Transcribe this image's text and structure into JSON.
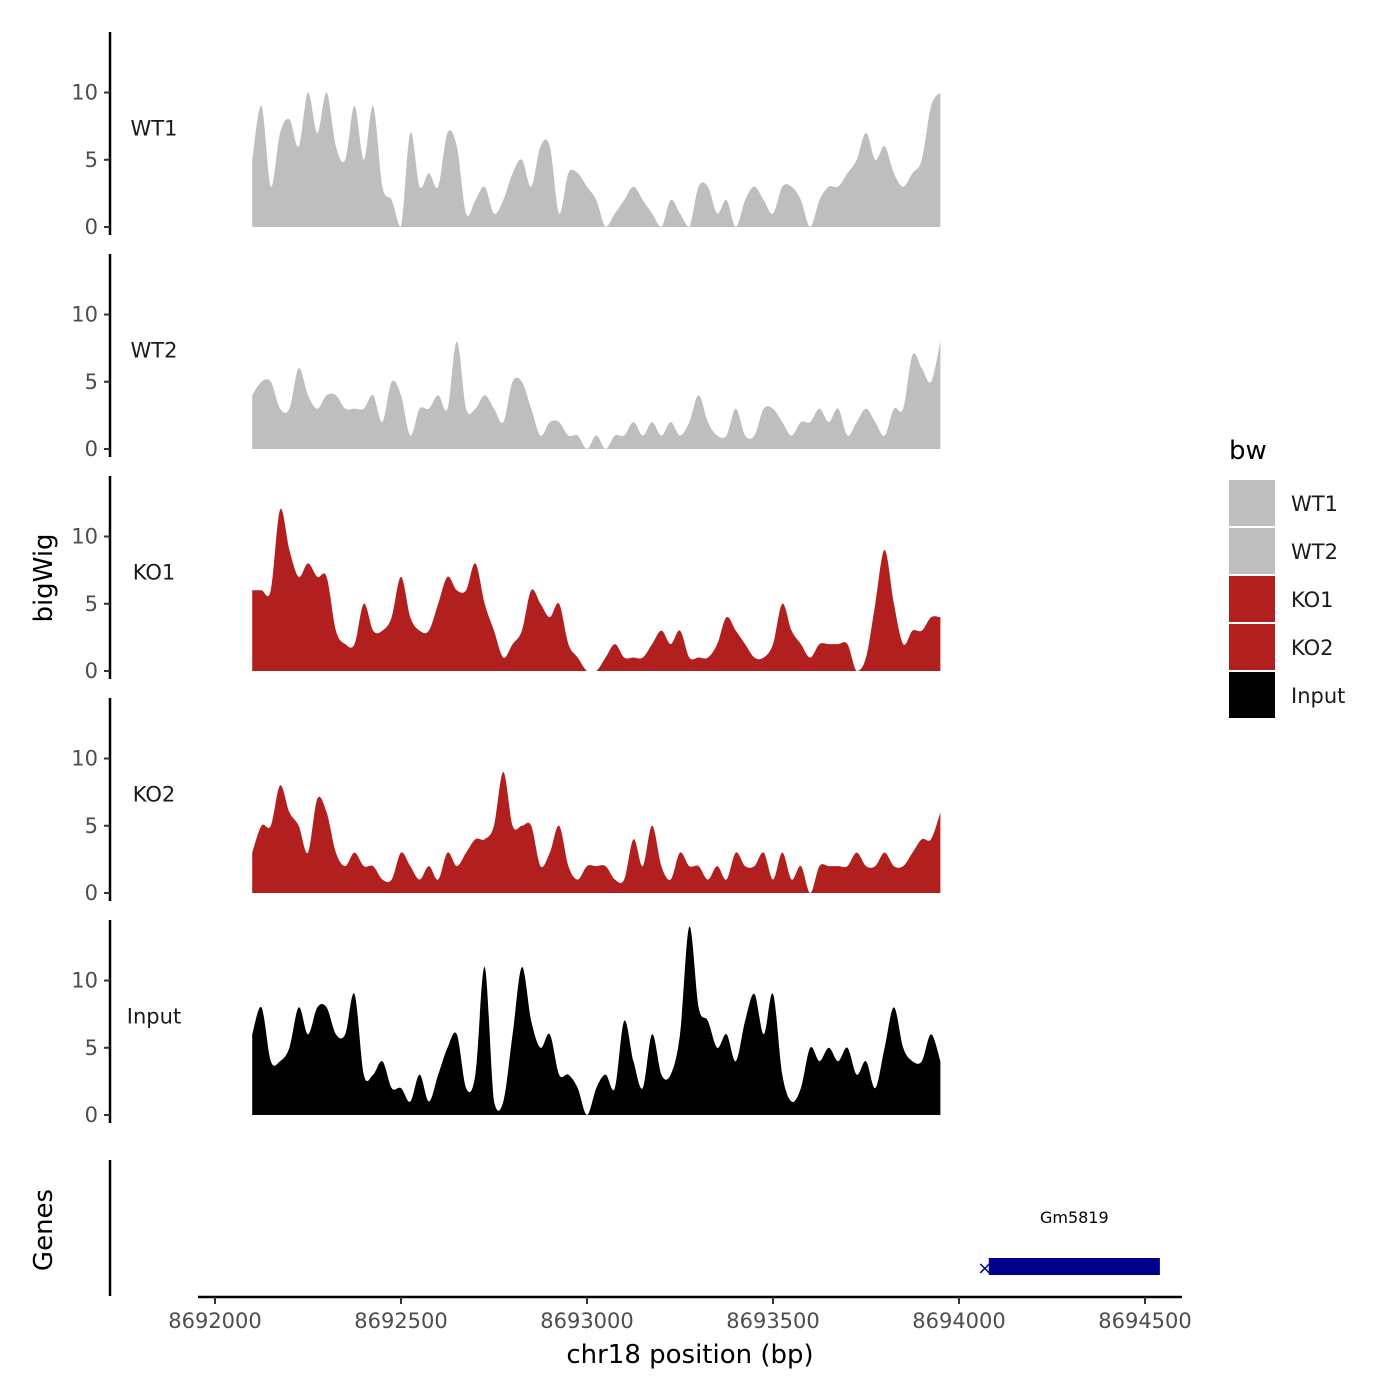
{
  "chart_data": {
    "type": "area",
    "ylabel": "bigWig",
    "genes_label": "Genes",
    "xlabel": "chr18 position (bp)",
    "xlim": [
      8691950,
      8694600
    ],
    "x_ticks": [
      8692000,
      8692500,
      8693000,
      8693500,
      8694000,
      8694500
    ],
    "x_tick_labels": [
      "8692000",
      "8692500",
      "8693000",
      "8693500",
      "8694000",
      "8694500"
    ],
    "ylim": [
      0,
      14.5
    ],
    "y_ticks": [
      0,
      5,
      10
    ],
    "y_tick_labels": [
      "0",
      "5",
      "10"
    ],
    "step": 25,
    "legend": {
      "title": "bw",
      "entries": [
        {
          "label": "WT1",
          "color": "#bebebe"
        },
        {
          "label": "WT2",
          "color": "#bebebe"
        },
        {
          "label": "KO1",
          "color": "#b21f1f"
        },
        {
          "label": "KO2",
          "color": "#b21f1f"
        },
        {
          "label": "Input",
          "color": "#000000"
        }
      ]
    },
    "tracks": [
      {
        "name": "WT1",
        "color": "#bebebe",
        "x_start": 8692100,
        "values": [
          5,
          9,
          3,
          7,
          8,
          6,
          10,
          7,
          10,
          6,
          5,
          9,
          5,
          9,
          3,
          2,
          0,
          7,
          3,
          4,
          3,
          7,
          6,
          1,
          2,
          3,
          1,
          2,
          4,
          5,
          3,
          6,
          6,
          1,
          4,
          4,
          3,
          2,
          0,
          1,
          2,
          3,
          2,
          1,
          0,
          2,
          1,
          0,
          3,
          3,
          1,
          2,
          0,
          2,
          3,
          2,
          1,
          3,
          3,
          2,
          0,
          2,
          3,
          3,
          4,
          5,
          7,
          5,
          6,
          4,
          3,
          4,
          5,
          9,
          10
        ]
      },
      {
        "name": "WT2",
        "color": "#bebebe",
        "x_start": 8692100,
        "values": [
          4,
          5,
          5,
          3,
          3,
          6,
          4,
          3,
          4,
          4,
          3,
          3,
          3,
          4,
          2,
          5,
          4,
          1,
          3,
          3,
          4,
          3,
          8,
          3,
          3,
          4,
          3,
          2,
          5,
          5,
          3,
          1,
          2,
          2,
          1,
          1,
          0,
          1,
          0,
          1,
          1,
          2,
          1,
          2,
          1,
          2,
          1,
          2,
          4,
          2,
          1,
          1,
          3,
          1,
          1,
          3,
          3,
          2,
          1,
          2,
          2,
          3,
          2,
          3,
          1,
          2,
          3,
          2,
          1,
          3,
          3,
          7,
          6,
          5,
          8
        ]
      },
      {
        "name": "KO1",
        "color": "#b21f1f",
        "x_start": 8692100,
        "values": [
          6,
          6,
          6,
          12,
          9,
          7,
          8,
          7,
          7,
          3,
          2,
          2,
          5,
          3,
          3,
          4,
          7,
          4,
          3,
          3,
          5,
          7,
          6,
          6,
          8,
          5,
          3,
          1,
          2,
          3,
          6,
          5,
          4,
          5,
          2,
          1,
          0,
          0,
          1,
          2,
          1,
          1,
          1,
          2,
          3,
          2,
          3,
          1,
          1,
          1,
          2,
          4,
          3,
          2,
          1,
          1,
          2,
          5,
          3,
          2,
          1,
          2,
          2,
          2,
          2,
          0,
          1,
          5,
          9,
          5,
          2,
          3,
          3,
          4,
          4
        ]
      },
      {
        "name": "KO2",
        "color": "#b21f1f",
        "x_start": 8692100,
        "values": [
          3,
          5,
          5,
          8,
          6,
          5,
          3,
          7,
          6,
          3,
          2,
          3,
          2,
          2,
          1,
          1,
          3,
          2,
          1,
          2,
          1,
          3,
          2,
          3,
          4,
          4,
          5,
          9,
          5,
          5,
          5,
          2,
          3,
          5,
          2,
          1,
          2,
          2,
          2,
          1,
          1,
          4,
          2,
          5,
          2,
          1,
          3,
          2,
          2,
          1,
          2,
          1,
          3,
          2,
          2,
          3,
          1,
          3,
          1,
          2,
          0,
          2,
          2,
          2,
          2,
          3,
          2,
          2,
          3,
          2,
          2,
          3,
          4,
          4,
          6
        ]
      },
      {
        "name": "Input",
        "color": "#000000",
        "x_start": 8692100,
        "values": [
          6,
          8,
          4,
          4,
          5,
          8,
          6,
          8,
          8,
          6,
          6,
          9,
          3,
          3,
          4,
          2,
          2,
          1,
          3,
          1,
          3,
          5,
          6,
          2,
          3,
          11,
          1,
          1,
          6,
          11,
          7,
          5,
          6,
          3,
          3,
          2,
          0,
          2,
          3,
          2,
          7,
          4,
          2,
          6,
          3,
          3,
          6,
          14,
          8,
          7,
          5,
          6,
          4,
          7,
          9,
          6,
          9,
          3,
          1,
          2,
          5,
          4,
          5,
          4,
          5,
          3,
          4,
          2,
          5,
          8,
          5,
          4,
          4,
          6,
          4
        ]
      }
    ],
    "gene": {
      "name": "Gm5819",
      "start": 8694080,
      "end": 8694540,
      "color": "#00008b",
      "strand_marker": "×"
    }
  }
}
